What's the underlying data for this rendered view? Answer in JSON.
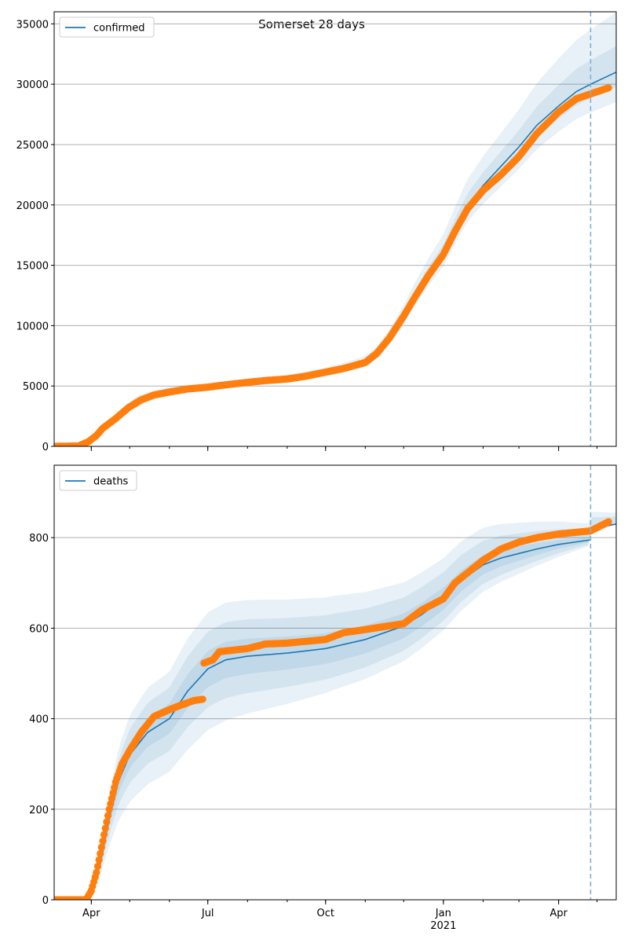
{
  "figure": {
    "title": "Somerset 28 days",
    "colors": {
      "model": "#1f77b4",
      "observed": "#ff7f0e",
      "band": "#1f77b4",
      "grid": "#b0b0b0",
      "forecast_line": "#7fb0d3"
    }
  },
  "chart_data": [
    {
      "type": "line",
      "title": "Somerset 28 days",
      "legend": {
        "label": "confirmed",
        "placement": "top-left"
      },
      "x_range": [
        "2020-03-03",
        "2021-05-16"
      ],
      "forecast_start": "2021-04-26",
      "ylim": [
        0,
        36000
      ],
      "yticks": [
        0,
        5000,
        10000,
        15000,
        20000,
        25000,
        30000,
        35000
      ],
      "grid": "horizontal",
      "xticks": [
        {
          "date": "2020-04-01",
          "label": "Apr"
        },
        {
          "date": "2020-07-01",
          "label": "Jul"
        },
        {
          "date": "2020-10-01",
          "label": "Oct"
        },
        {
          "date": "2021-01-01",
          "label": "Jan",
          "sublabel": "2021"
        },
        {
          "date": "2021-04-01",
          "label": "Apr"
        }
      ],
      "series": [
        {
          "name": "confirmed",
          "role": "model",
          "points": [
            [
              "2020-03-03",
              0
            ],
            [
              "2020-03-20",
              50
            ],
            [
              "2020-03-28",
              300
            ],
            [
              "2020-04-05",
              900
            ],
            [
              "2020-04-15",
              2000
            ],
            [
              "2020-04-25",
              3000
            ],
            [
              "2020-05-05",
              3800
            ],
            [
              "2020-05-15",
              4250
            ],
            [
              "2020-06-01",
              4650
            ],
            [
              "2020-06-15",
              4800
            ],
            [
              "2020-07-01",
              4950
            ],
            [
              "2020-07-15",
              5100
            ],
            [
              "2020-08-01",
              5300
            ],
            [
              "2020-08-15",
              5450
            ],
            [
              "2020-09-01",
              5600
            ],
            [
              "2020-09-15",
              5850
            ],
            [
              "2020-10-01",
              6150
            ],
            [
              "2020-10-15",
              6500
            ],
            [
              "2020-11-01",
              7000
            ],
            [
              "2020-11-10",
              7700
            ],
            [
              "2020-11-20",
              9000
            ],
            [
              "2020-12-01",
              10800
            ],
            [
              "2020-12-10",
              12500
            ],
            [
              "2020-12-20",
              14200
            ],
            [
              "2021-01-01",
              16000
            ],
            [
              "2021-01-10",
              18000
            ],
            [
              "2021-01-20",
              20000
            ],
            [
              "2021-02-01",
              21600
            ],
            [
              "2021-02-15",
              23200
            ],
            [
              "2021-03-01",
              24800
            ],
            [
              "2021-03-15",
              26600
            ],
            [
              "2021-04-01",
              28200
            ],
            [
              "2021-04-15",
              29400
            ],
            [
              "2021-04-26",
              30000
            ],
            [
              "2021-05-16",
              31000
            ]
          ],
          "bands": [
            {
              "lower": [
                0.97,
                0.97,
                0.96
              ],
              "upper": [
                1.03,
                1.03,
                1.07
              ]
            },
            {
              "lower": [
                0.94,
                0.94,
                0.92
              ],
              "upper": [
                1.06,
                1.06,
                1.16
              ]
            }
          ]
        },
        {
          "name": "observed confirmed",
          "role": "observed",
          "anchors": [
            [
              "2020-03-03",
              0
            ],
            [
              "2020-03-22",
              30
            ],
            [
              "2020-03-30",
              400
            ],
            [
              "2020-04-05",
              900
            ],
            [
              "2020-04-10",
              1500
            ],
            [
              "2020-04-20",
              2300
            ],
            [
              "2020-04-30",
              3200
            ],
            [
              "2020-05-10",
              3850
            ],
            [
              "2020-05-20",
              4250
            ],
            [
              "2020-06-01",
              4500
            ],
            [
              "2020-06-15",
              4750
            ],
            [
              "2020-07-01",
              4900
            ],
            [
              "2020-07-15",
              5100
            ],
            [
              "2020-08-01",
              5300
            ],
            [
              "2020-08-15",
              5450
            ],
            [
              "2020-09-01",
              5580
            ],
            [
              "2020-09-15",
              5800
            ],
            [
              "2020-10-01",
              6150
            ],
            [
              "2020-10-15",
              6450
            ],
            [
              "2020-11-01",
              6950
            ],
            [
              "2020-11-10",
              7700
            ],
            [
              "2020-11-20",
              9000
            ],
            [
              "2020-12-01",
              10800
            ],
            [
              "2020-12-10",
              12400
            ],
            [
              "2020-12-20",
              14100
            ],
            [
              "2021-01-01",
              15900
            ],
            [
              "2021-01-10",
              17800
            ],
            [
              "2021-01-20",
              19700
            ],
            [
              "2021-02-01",
              21200
            ],
            [
              "2021-02-15",
              22500
            ],
            [
              "2021-03-01",
              24000
            ],
            [
              "2021-03-15",
              25900
            ],
            [
              "2021-04-01",
              27700
            ],
            [
              "2021-04-15",
              28800
            ],
            [
              "2021-04-26",
              29200
            ],
            [
              "2021-05-10",
              29700
            ]
          ],
          "gaps": []
        }
      ]
    },
    {
      "type": "line",
      "legend": {
        "label": "deaths",
        "placement": "top-left"
      },
      "x_range": [
        "2020-03-03",
        "2021-05-16"
      ],
      "forecast_start": "2021-04-26",
      "ylim": [
        0,
        960
      ],
      "yticks": [
        0,
        200,
        400,
        600,
        800
      ],
      "grid": "horizontal",
      "xticks": [
        {
          "date": "2020-04-01",
          "label": "Apr"
        },
        {
          "date": "2020-07-01",
          "label": "Jul"
        },
        {
          "date": "2020-10-01",
          "label": "Oct"
        },
        {
          "date": "2021-01-01",
          "label": "Jan",
          "sublabel": "2021"
        },
        {
          "date": "2021-04-01",
          "label": "Apr"
        }
      ],
      "series": [
        {
          "name": "deaths",
          "role": "model",
          "points": [
            [
              "2020-03-03",
              0
            ],
            [
              "2020-03-25",
              2
            ],
            [
              "2020-04-01",
              20
            ],
            [
              "2020-04-08",
              80
            ],
            [
              "2020-04-15",
              180
            ],
            [
              "2020-04-22",
              260
            ],
            [
              "2020-05-01",
              320
            ],
            [
              "2020-05-15",
              370
            ],
            [
              "2020-06-01",
              400
            ],
            [
              "2020-06-15",
              460
            ],
            [
              "2020-07-01",
              510
            ],
            [
              "2020-07-15",
              530
            ],
            [
              "2020-08-01",
              538
            ],
            [
              "2020-09-01",
              545
            ],
            [
              "2020-10-01",
              555
            ],
            [
              "2020-11-01",
              575
            ],
            [
              "2020-12-01",
              605
            ],
            [
              "2020-12-15",
              630
            ],
            [
              "2021-01-01",
              665
            ],
            [
              "2021-01-15",
              705
            ],
            [
              "2021-02-01",
              740
            ],
            [
              "2021-02-15",
              755
            ],
            [
              "2021-03-01",
              765
            ],
            [
              "2021-03-15",
              775
            ],
            [
              "2021-04-01",
              785
            ],
            [
              "2021-04-26",
              795
            ],
            [
              "2021-04-26",
              820
            ],
            [
              "2021-05-16",
              830
            ]
          ],
          "bands": [
            {
              "lower": [
                0.9,
                0.94,
                1.0
              ],
              "upper": [
                1.1,
                1.06,
                1.0
              ]
            },
            {
              "lower": [
                0.78,
                0.88,
                1.0
              ],
              "upper": [
                1.2,
                1.13,
                1.02
              ]
            },
            {
              "lower": [
                0.62,
                0.83,
                1.0
              ],
              "upper": [
                1.3,
                1.2,
                1.03
              ]
            }
          ]
        },
        {
          "name": "observed deaths",
          "role": "observed",
          "anchors": [
            [
              "2020-03-03",
              0
            ],
            [
              "2020-03-28",
              0
            ],
            [
              "2020-04-01",
              20
            ],
            [
              "2020-04-05",
              60
            ],
            [
              "2020-04-10",
              130
            ],
            [
              "2020-04-15",
              200
            ],
            [
              "2020-04-20",
              260
            ],
            [
              "2020-04-25",
              300
            ],
            [
              "2020-05-01",
              330
            ],
            [
              "2020-05-10",
              370
            ],
            [
              "2020-05-20",
              405
            ],
            [
              "2020-06-01",
              420
            ],
            [
              "2020-06-10",
              430
            ],
            [
              "2020-06-20",
              440
            ],
            [
              "2020-06-27",
              443
            ],
            [
              "2020-06-28",
              523
            ],
            [
              "2020-07-05",
              530
            ],
            [
              "2020-07-10",
              548
            ],
            [
              "2020-08-01",
              555
            ],
            [
              "2020-08-15",
              565
            ],
            [
              "2020-09-01",
              567
            ],
            [
              "2020-10-01",
              575
            ],
            [
              "2020-10-15",
              590
            ],
            [
              "2020-11-01",
              597
            ],
            [
              "2020-12-01",
              610
            ],
            [
              "2020-12-15",
              640
            ],
            [
              "2021-01-01",
              665
            ],
            [
              "2021-01-10",
              700
            ],
            [
              "2021-02-01",
              750
            ],
            [
              "2021-02-15",
              775
            ],
            [
              "2021-03-01",
              790
            ],
            [
              "2021-03-15",
              800
            ],
            [
              "2021-04-01",
              808
            ],
            [
              "2021-04-26",
              815
            ],
            [
              "2021-05-10",
              835
            ]
          ],
          "gaps": [
            [
              "2020-06-27",
              "2020-06-28"
            ]
          ]
        }
      ]
    }
  ]
}
